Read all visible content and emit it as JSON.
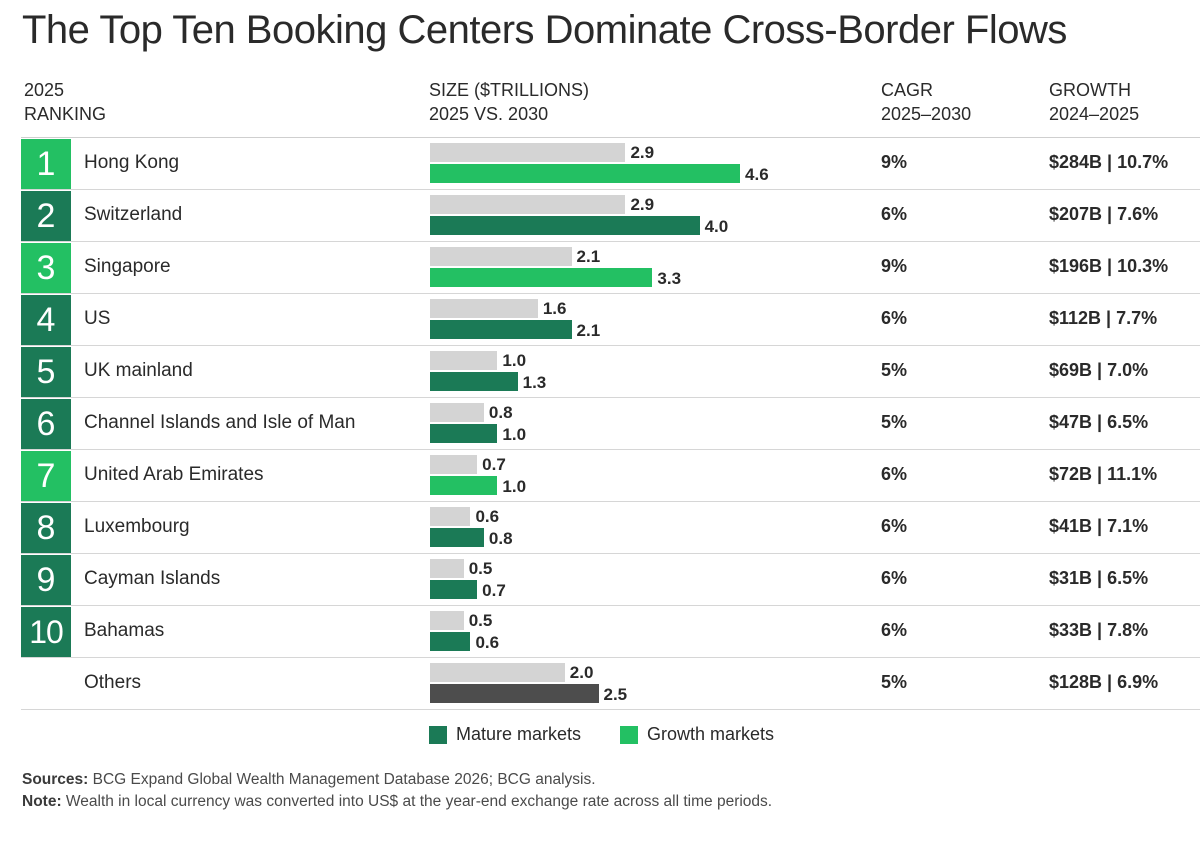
{
  "title": "The Top Ten Booking Centers Dominate Cross-Border Flows",
  "headers": {
    "ranking": [
      "2025",
      "RANKING"
    ],
    "size": [
      "SIZE ($TRILLIONS)",
      "2025 VS. 2030"
    ],
    "cagr": [
      "CAGR",
      "2025–2030"
    ],
    "growth": [
      "GROWTH",
      "2024–2025"
    ]
  },
  "colors": {
    "mature": "#1b7a56",
    "growth": "#23c063",
    "base_2025": "#d4d4d4",
    "others": "#4d4d4d",
    "rule": "#d6d6d6"
  },
  "legend": [
    {
      "label": "Mature markets",
      "color": "#1b7a56"
    },
    {
      "label": "Growth markets",
      "color": "#23c063"
    }
  ],
  "chart_data": {
    "type": "bar",
    "orientation": "horizontal",
    "unit": "$ trillions",
    "xlim": [
      0,
      4.6
    ],
    "rows": [
      {
        "rank": "1",
        "name": "Hong Kong",
        "market": "growth",
        "v2025": 2.9,
        "v2030": 4.6,
        "l2025": "2.9",
        "l2030": "4.6",
        "cagr": "9%",
        "growth": "$284B | 10.7%"
      },
      {
        "rank": "2",
        "name": "Switzerland",
        "market": "mature",
        "v2025": 2.9,
        "v2030": 4.0,
        "l2025": "2.9",
        "l2030": "4.0",
        "cagr": "6%",
        "growth": "$207B | 7.6%"
      },
      {
        "rank": "3",
        "name": "Singapore",
        "market": "growth",
        "v2025": 2.1,
        "v2030": 3.3,
        "l2025": "2.1",
        "l2030": "3.3",
        "cagr": "9%",
        "growth": "$196B | 10.3%"
      },
      {
        "rank": "4",
        "name": "US",
        "market": "mature",
        "v2025": 1.6,
        "v2030": 2.1,
        "l2025": "1.6",
        "l2030": "2.1",
        "cagr": "6%",
        "growth": "$112B | 7.7%"
      },
      {
        "rank": "5",
        "name": "UK mainland",
        "market": "mature",
        "v2025": 1.0,
        "v2030": 1.3,
        "l2025": "1.0",
        "l2030": "1.3",
        "cagr": "5%",
        "growth": "$69B | 7.0%"
      },
      {
        "rank": "6",
        "name": "Channel Islands and Isle of Man",
        "market": "mature",
        "v2025": 0.8,
        "v2030": 1.0,
        "l2025": "0.8",
        "l2030": "1.0",
        "cagr": "5%",
        "growth": "$47B | 6.5%"
      },
      {
        "rank": "7",
        "name": "United Arab Emirates",
        "market": "growth",
        "v2025": 0.7,
        "v2030": 1.0,
        "l2025": "0.7",
        "l2030": "1.0",
        "cagr": "6%",
        "growth": "$72B | 11.1%"
      },
      {
        "rank": "8",
        "name": "Luxembourg",
        "market": "mature",
        "v2025": 0.6,
        "v2030": 0.8,
        "l2025": "0.6",
        "l2030": "0.8",
        "cagr": "6%",
        "growth": "$41B | 7.1%"
      },
      {
        "rank": "9",
        "name": "Cayman Islands",
        "market": "mature",
        "v2025": 0.5,
        "v2030": 0.7,
        "l2025": "0.5",
        "l2030": "0.7",
        "cagr": "6%",
        "growth": "$31B | 6.5%"
      },
      {
        "rank": "10",
        "name": "Bahamas",
        "market": "mature",
        "v2025": 0.5,
        "v2030": 0.6,
        "l2025": "0.5",
        "l2030": "0.6",
        "cagr": "6%",
        "growth": "$33B | 7.8%"
      },
      {
        "rank": "",
        "name": "Others",
        "market": "others",
        "v2025": 2.0,
        "v2030": 2.5,
        "l2025": "2.0",
        "l2030": "2.5",
        "cagr": "5%",
        "growth": "$128B | 6.9%"
      }
    ]
  },
  "footnotes": {
    "sources_label": "Sources:",
    "sources_text": " BCG Expand Global Wealth Management Database 2026; BCG analysis.",
    "note_label": "Note:",
    "note_text": " Wealth in local currency was converted into US$ at the year-end exchange rate across all time periods."
  }
}
